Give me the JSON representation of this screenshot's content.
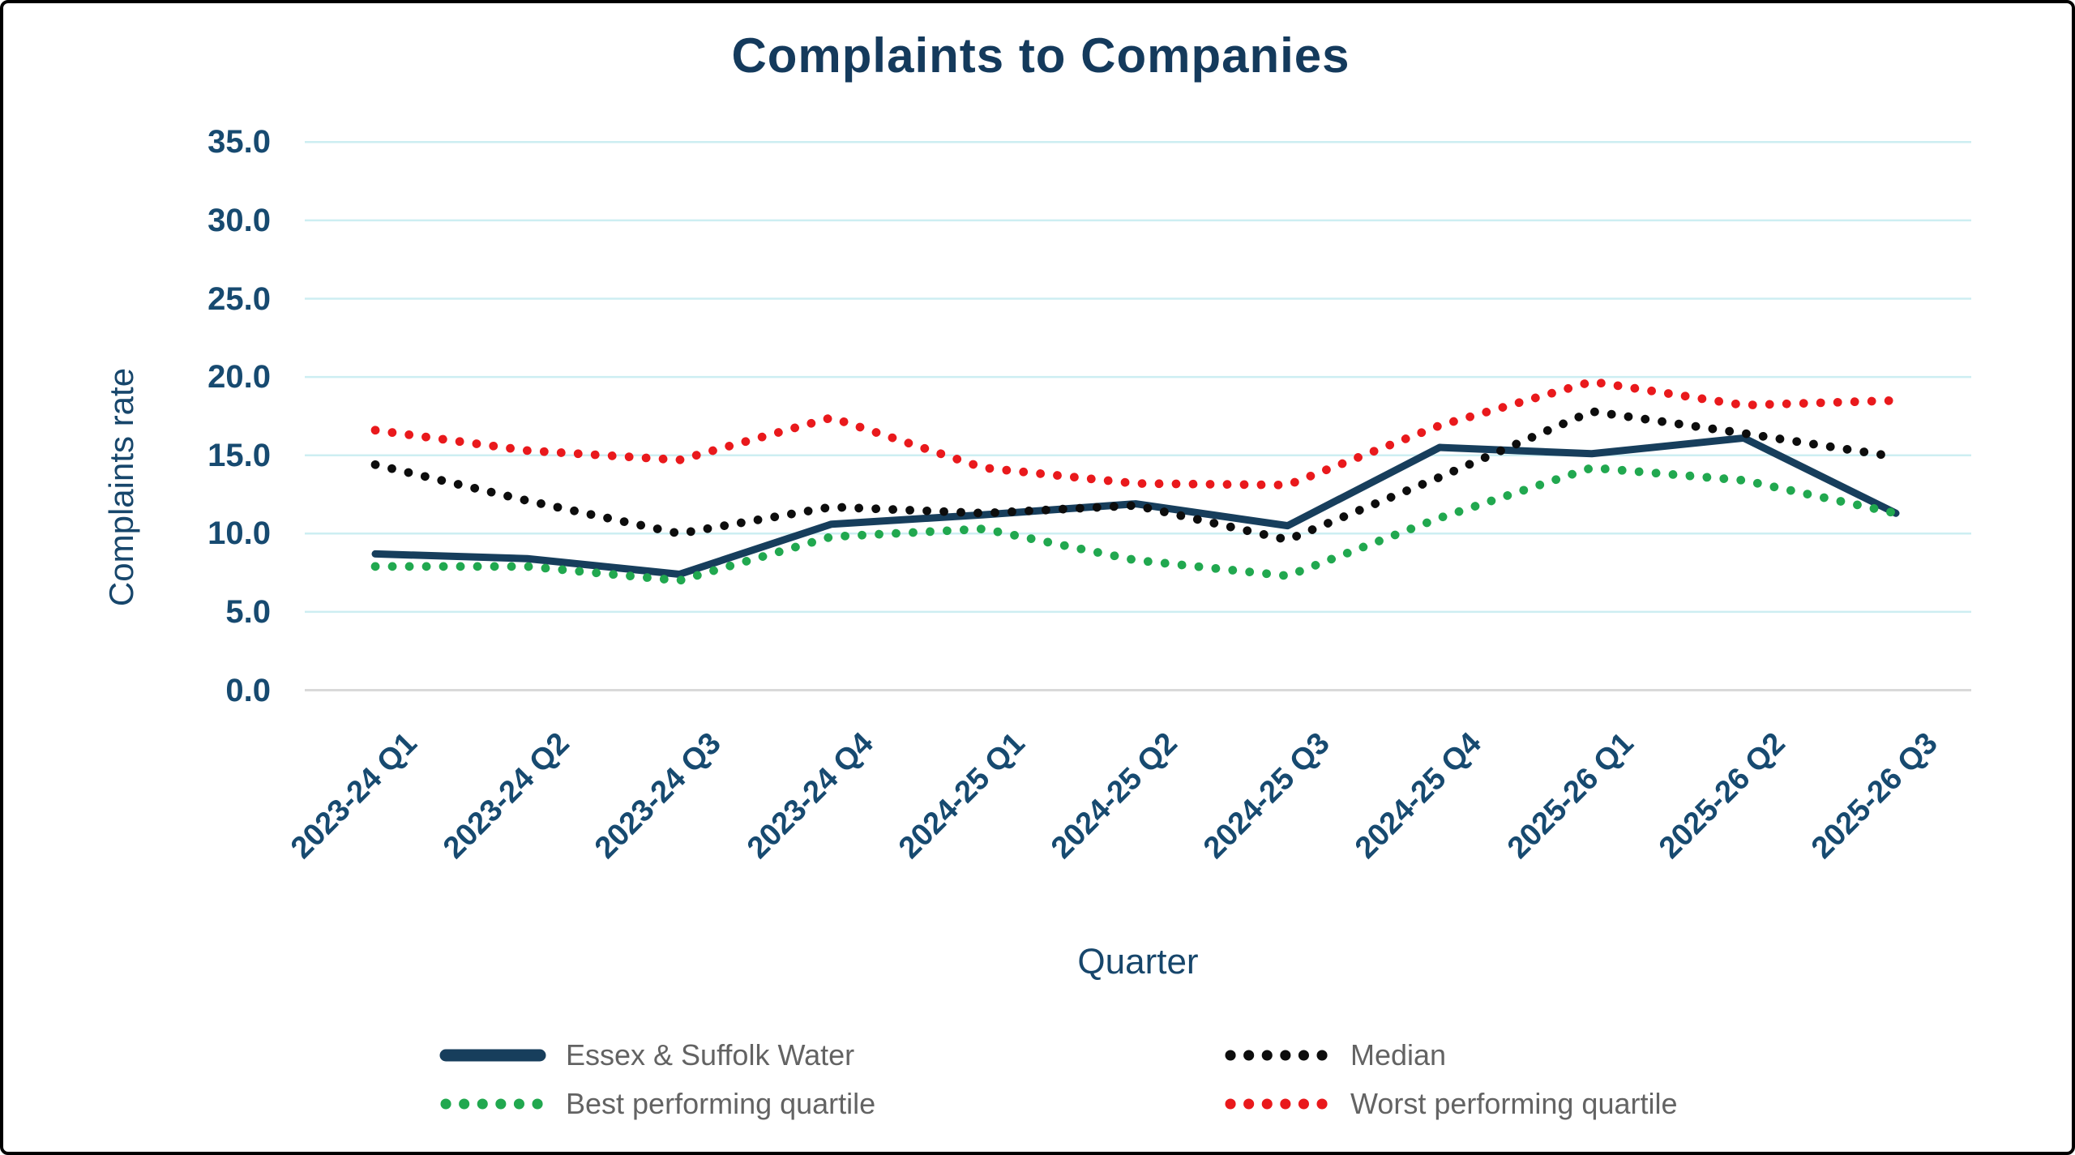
{
  "title": "Complaints to Companies",
  "y_axis": {
    "title": "Complaints rate"
  },
  "x_axis": {
    "title": "Quarter"
  },
  "colors": {
    "essex_navy": "#173e5c",
    "median_black": "#0d0d0d",
    "best_green": "#21a84f",
    "worst_red": "#e9191c",
    "gridline_cyan": "#cdeef2",
    "zero_axis_gray": "#d9d9d9",
    "text_navy": "#174a70",
    "title_navy": "#143a5c",
    "legend_text_gray": "#636363",
    "background": "#ffffff",
    "frame_border": "#000000"
  },
  "chart_data": {
    "type": "line",
    "title": "Complaints to Companies",
    "xlabel": "Quarter",
    "ylabel": "Complaints rate",
    "ylim": [
      0,
      35
    ],
    "ytick_step": 5,
    "ytick_labels": [
      "35.0",
      "30.0",
      "25.0",
      "20.0",
      "15.0",
      "10.0",
      "5.0",
      "0.0"
    ],
    "grid": true,
    "legend_position": "bottom",
    "categories": [
      "2023-24 Q1",
      "2023-24 Q2",
      "2023-24 Q3",
      "2023-24 Q4",
      "2024-25 Q1",
      "2024-25 Q2",
      "2024-25 Q3",
      "2024-25 Q4",
      "2025-26 Q1",
      "2025-26 Q2",
      "2025-26 Q3"
    ],
    "series": [
      {
        "name": "Essex & Suffolk Water",
        "style": "solid",
        "color": "#173e5c",
        "values": [
          8.7,
          8.4,
          7.4,
          10.6,
          11.2,
          11.9,
          10.5,
          15.5,
          15.1,
          16.1,
          11.3
        ]
      },
      {
        "name": "Median",
        "style": "dotted",
        "color": "#0d0d0d",
        "values": [
          14.4,
          12.1,
          10.0,
          11.7,
          11.3,
          11.8,
          9.6,
          13.6,
          17.8,
          16.4,
          14.9
        ]
      },
      {
        "name": "Best performing quartile",
        "style": "dotted",
        "color": "#21a84f",
        "values": [
          7.9,
          7.9,
          7.0,
          9.8,
          10.3,
          8.3,
          7.3,
          11.0,
          14.2,
          13.4,
          11.3
        ]
      },
      {
        "name": "Worst performing quartile",
        "style": "dotted",
        "color": "#e9191c",
        "values": [
          16.6,
          15.3,
          14.7,
          17.4,
          14.2,
          13.2,
          13.1,
          16.9,
          19.7,
          18.2,
          18.5
        ]
      }
    ]
  }
}
